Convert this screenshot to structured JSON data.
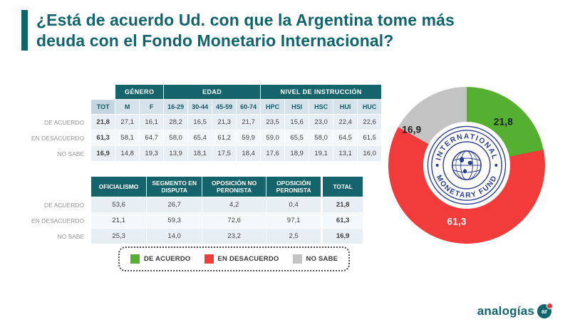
{
  "header": {
    "line1": "¿Está de acuerdo Ud. con que la Argentina tome más",
    "line2": "deuda con el Fondo Monetario Internacional?"
  },
  "colors": {
    "brand_teal": "#10656d",
    "table_header_teal": "#15636b",
    "green": "#55b032",
    "red": "#f23b3b",
    "gray": "#c3c3c3",
    "imf_navy": "#2b3f8f"
  },
  "chart_data": [
    {
      "type": "pie",
      "subtype": "donut",
      "title": "¿Está de acuerdo Ud. con que la Argentina tome más deuda con el Fondo Monetario Internacional?",
      "labels": [
        "DE ACUERDO",
        "EN DESACUERDO",
        "NO SABE"
      ],
      "values": [
        21.8,
        61.3,
        16.9
      ],
      "display_values": [
        "21,8",
        "61,3",
        "16,9"
      ],
      "colors": [
        "#55b032",
        "#f23b3b",
        "#c3c3c3"
      ],
      "label_colors": [
        "#1c1c1c",
        "#ffffff",
        "#1c1c1c"
      ],
      "label_angles_deg": [
        40,
        190,
        303
      ],
      "label_radii": [
        80,
        80,
        92
      ],
      "start_angle_deg": 0,
      "legend_position": "bottom-left",
      "center_logo": {
        "top_text": "INTERNATIONAL",
        "bottom_text": "MONETARY FUND"
      }
    },
    {
      "type": "table",
      "name": "results-by-demographics",
      "groups": [
        {
          "label": "GÉNERO",
          "span": 2
        },
        {
          "label": "EDAD",
          "span": 4
        },
        {
          "label": "NIVEL DE INSTRUCCIÓN",
          "span": 5
        }
      ],
      "columns": [
        "TOT",
        "M",
        "F",
        "16-29",
        "30-44",
        "45-59",
        "60-74",
        "HPC",
        "HSI",
        "HSC",
        "HUI",
        "HUC"
      ],
      "rows": [
        {
          "label": "DE ACUERDO",
          "values": [
            "21,8",
            "27,1",
            "16,1",
            "28,2",
            "16,5",
            "21,3",
            "21,7",
            "23,5",
            "15,6",
            "23,0",
            "22,4",
            "22,6"
          ]
        },
        {
          "label": "EN DESACUERDO",
          "values": [
            "61,3",
            "58,1",
            "64,7",
            "58,0",
            "65,4",
            "61,2",
            "59,9",
            "59,0",
            "65,5",
            "58,0",
            "64,5",
            "61,5"
          ]
        },
        {
          "label": "NO SABE",
          "values": [
            "16,9",
            "14,8",
            "19,3",
            "13,9",
            "18,1",
            "17,5",
            "18,4",
            "17,6",
            "18,9",
            "19,1",
            "13,1",
            "16,0"
          ]
        }
      ]
    },
    {
      "type": "table",
      "name": "results-by-political-segment",
      "columns": [
        "OFICIALISMO",
        "SEGMENTO EN DISPUTA",
        "OPOSICIÓN NO PERONISTA",
        "OPOSICIÓN PERONISTA",
        "TOTAL"
      ],
      "rows": [
        {
          "label": "DE ACUERDO",
          "values": [
            "53,6",
            "26,7",
            "4,2",
            "0,4",
            "21,8"
          ]
        },
        {
          "label": "EN DESACUERDO",
          "values": [
            "21,1",
            "59,3",
            "72,6",
            "97,1",
            "61,3"
          ]
        },
        {
          "label": "NO SABE",
          "values": [
            "25,3",
            "14,0",
            "23,2",
            "2,5",
            "16,9"
          ]
        }
      ]
    }
  ],
  "brand": {
    "name": "analogías",
    "badge": "ar"
  }
}
